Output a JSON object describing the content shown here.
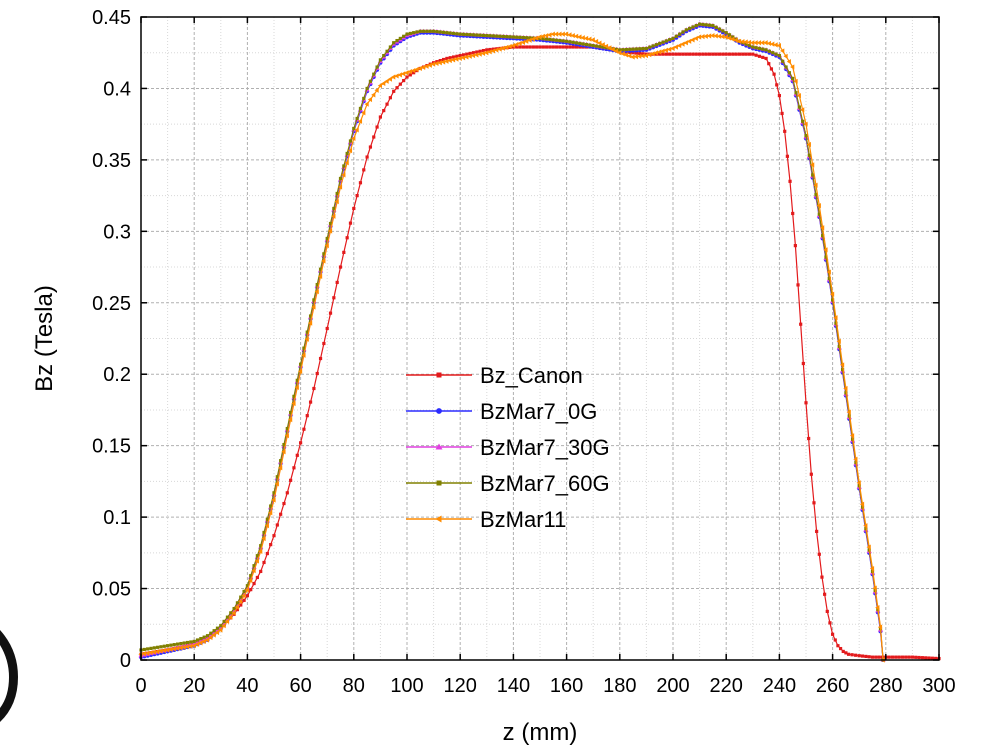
{
  "chart_data": {
    "type": "line",
    "xlabel": "z (mm)",
    "ylabel": "Bz (Tesla)",
    "xlim": [
      0,
      300
    ],
    "ylim": [
      0,
      0.45
    ],
    "x_ticks": [
      0,
      20,
      40,
      60,
      80,
      100,
      120,
      140,
      160,
      180,
      200,
      220,
      240,
      260,
      280,
      300
    ],
    "y_ticks": [
      0,
      0.05,
      0.1,
      0.15,
      0.2,
      0.25,
      0.3,
      0.35,
      0.4,
      0.45
    ],
    "x_tick_labels": [
      "0",
      "20",
      "40",
      "60",
      "80",
      "100",
      "120",
      "140",
      "160",
      "180",
      "200",
      "220",
      "240",
      "260",
      "280",
      "300"
    ],
    "y_tick_labels": [
      "0",
      "0.05",
      "0.1",
      "0.15",
      "0.2",
      "0.25",
      "0.3",
      "0.35",
      "0.4",
      "0.45"
    ],
    "grid": true,
    "legend_position": "center",
    "series": [
      {
        "name": "Bz_Canon",
        "color": "#e31a1c",
        "marker": "square",
        "x": [
          0,
          10,
          20,
          25,
          30,
          35,
          40,
          45,
          50,
          55,
          60,
          65,
          70,
          75,
          80,
          85,
          90,
          95,
          100,
          105,
          110,
          115,
          120,
          130,
          140,
          150,
          160,
          170,
          180,
          190,
          200,
          210,
          220,
          230,
          235,
          238,
          240,
          242,
          244,
          246,
          248,
          250,
          252,
          254,
          256,
          258,
          260,
          262,
          264,
          266,
          270,
          275,
          280,
          290,
          300
        ],
        "y": [
          0.004,
          0.007,
          0.011,
          0.015,
          0.022,
          0.032,
          0.045,
          0.062,
          0.087,
          0.117,
          0.152,
          0.19,
          0.232,
          0.275,
          0.316,
          0.352,
          0.38,
          0.398,
          0.408,
          0.414,
          0.418,
          0.421,
          0.423,
          0.427,
          0.429,
          0.429,
          0.429,
          0.429,
          0.426,
          0.424,
          0.424,
          0.424,
          0.424,
          0.424,
          0.421,
          0.41,
          0.395,
          0.37,
          0.335,
          0.29,
          0.235,
          0.18,
          0.13,
          0.09,
          0.058,
          0.034,
          0.018,
          0.01,
          0.006,
          0.004,
          0.003,
          0.002,
          0.002,
          0.002,
          0.001
        ]
      },
      {
        "name": "BzMar7_0G",
        "color": "#2c2cff",
        "marker": "circle",
        "x": [
          0,
          10,
          20,
          25,
          30,
          35,
          40,
          45,
          50,
          55,
          60,
          65,
          70,
          75,
          80,
          85,
          90,
          95,
          100,
          105,
          110,
          115,
          120,
          130,
          140,
          150,
          160,
          170,
          180,
          190,
          200,
          205,
          210,
          215,
          220,
          225,
          230,
          235,
          240,
          245,
          250,
          255,
          260,
          265,
          270,
          275,
          278,
          279
        ],
        "y": [
          0.002,
          0.006,
          0.01,
          0.014,
          0.022,
          0.034,
          0.05,
          0.078,
          0.115,
          0.16,
          0.205,
          0.25,
          0.293,
          0.335,
          0.37,
          0.398,
          0.418,
          0.43,
          0.436,
          0.439,
          0.439,
          0.438,
          0.437,
          0.436,
          0.435,
          0.434,
          0.432,
          0.429,
          0.426,
          0.427,
          0.434,
          0.44,
          0.444,
          0.443,
          0.438,
          0.432,
          0.428,
          0.426,
          0.422,
          0.405,
          0.365,
          0.31,
          0.25,
          0.185,
          0.12,
          0.06,
          0.02,
          0.0
        ]
      },
      {
        "name": "BzMar7_30G",
        "color": "#e040e0",
        "marker": "triangle-up",
        "x": [
          0,
          10,
          20,
          25,
          30,
          35,
          40,
          45,
          50,
          55,
          60,
          65,
          70,
          75,
          80,
          85,
          90,
          95,
          100,
          105,
          110,
          115,
          120,
          130,
          140,
          150,
          160,
          170,
          180,
          190,
          200,
          205,
          210,
          215,
          220,
          225,
          230,
          235,
          240,
          245,
          250,
          255,
          260,
          265,
          270,
          275,
          278,
          279
        ],
        "y": [
          0.003,
          0.007,
          0.011,
          0.015,
          0.023,
          0.035,
          0.051,
          0.079,
          0.116,
          0.161,
          0.206,
          0.251,
          0.294,
          0.336,
          0.371,
          0.399,
          0.419,
          0.431,
          0.437,
          0.44,
          0.44,
          0.439,
          0.438,
          0.437,
          0.436,
          0.435,
          0.433,
          0.43,
          0.427,
          0.428,
          0.435,
          0.441,
          0.445,
          0.444,
          0.439,
          0.433,
          0.429,
          0.427,
          0.423,
          0.406,
          0.366,
          0.311,
          0.251,
          0.186,
          0.121,
          0.061,
          0.021,
          0.0
        ]
      },
      {
        "name": "BzMar7_60G",
        "color": "#808000",
        "marker": "square",
        "x": [
          0,
          10,
          20,
          25,
          30,
          35,
          40,
          45,
          50,
          55,
          60,
          65,
          70,
          75,
          80,
          85,
          90,
          95,
          100,
          105,
          110,
          115,
          120,
          130,
          140,
          150,
          160,
          170,
          180,
          190,
          200,
          205,
          210,
          215,
          220,
          225,
          230,
          235,
          240,
          245,
          250,
          255,
          260,
          265,
          270,
          275,
          278,
          279
        ],
        "y": [
          0.007,
          0.01,
          0.013,
          0.017,
          0.024,
          0.036,
          0.052,
          0.08,
          0.117,
          0.162,
          0.207,
          0.252,
          0.295,
          0.337,
          0.372,
          0.4,
          0.42,
          0.432,
          0.438,
          0.44,
          0.44,
          0.439,
          0.438,
          0.437,
          0.436,
          0.435,
          0.433,
          0.43,
          0.427,
          0.428,
          0.435,
          0.441,
          0.445,
          0.444,
          0.439,
          0.433,
          0.429,
          0.427,
          0.423,
          0.407,
          0.367,
          0.312,
          0.252,
          0.187,
          0.122,
          0.062,
          0.022,
          0.0
        ]
      },
      {
        "name": "BzMar11",
        "color": "#ff8c00",
        "marker": "triangle-left",
        "x": [
          0,
          10,
          20,
          25,
          30,
          35,
          40,
          45,
          50,
          55,
          60,
          65,
          70,
          75,
          80,
          85,
          90,
          95,
          100,
          105,
          110,
          115,
          120,
          130,
          140,
          150,
          155,
          160,
          170,
          180,
          185,
          190,
          200,
          205,
          210,
          215,
          220,
          225,
          230,
          235,
          240,
          245,
          250,
          255,
          260,
          265,
          270,
          275,
          278,
          279
        ],
        "y": [
          0.004,
          0.007,
          0.01,
          0.014,
          0.021,
          0.033,
          0.049,
          0.076,
          0.112,
          0.157,
          0.202,
          0.247,
          0.29,
          0.331,
          0.365,
          0.389,
          0.402,
          0.408,
          0.411,
          0.414,
          0.417,
          0.419,
          0.421,
          0.425,
          0.43,
          0.436,
          0.438,
          0.438,
          0.434,
          0.425,
          0.422,
          0.423,
          0.428,
          0.432,
          0.436,
          0.437,
          0.436,
          0.433,
          0.432,
          0.432,
          0.43,
          0.415,
          0.375,
          0.318,
          0.256,
          0.19,
          0.124,
          0.064,
          0.023,
          0.0
        ]
      }
    ]
  }
}
